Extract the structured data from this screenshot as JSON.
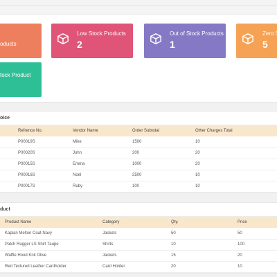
{
  "colors": {
    "orange": "#ee7f5e",
    "pink": "#e05477",
    "purple": "#8579c6",
    "amber": "#f5a254",
    "teal": "#2fbf96",
    "table_header": "#f9e7cc"
  },
  "cards": [
    {
      "label": "oducts",
      "value": "",
      "icon": "box-icon"
    },
    {
      "label": "Low Stock Products",
      "value": "2",
      "icon": "box-icon"
    },
    {
      "label": "Out of Stock Products",
      "value": "1",
      "icon": "box-icon"
    },
    {
      "label": "Zero S",
      "value": "5",
      "icon": "box-icon"
    },
    {
      "label": "tock Product",
      "value": "",
      "icon": ""
    }
  ],
  "invoice": {
    "title": "oice",
    "headers": [
      "Refrence No.",
      "Vendor Name",
      "Order Subtotal",
      "Other Charges Total"
    ],
    "rows": [
      [
        "P00019S",
        "Mike",
        "1500",
        "10"
      ],
      [
        "P00020S",
        "John",
        "200",
        "20"
      ],
      [
        "P00015S",
        "Emma",
        "1000",
        "20"
      ],
      [
        "P00016S",
        "Noel",
        "2500",
        "10"
      ],
      [
        "P00017S",
        "Ruby",
        "100",
        "10"
      ]
    ]
  },
  "product": {
    "title": "duct",
    "headers": [
      "Product Name",
      "Category",
      "Qty.",
      "Price"
    ],
    "rows": [
      [
        "Kaplan Melton Coat Navy",
        "Jackets",
        "50",
        "50"
      ],
      [
        "Patch Rugger LS Shirt Taupe",
        "Shirts",
        "10",
        "100"
      ],
      [
        "Waffle Hood Knit Olive",
        "Jackets",
        "15",
        "20"
      ],
      [
        "Red Textured Leather Cardholder",
        "Card Holder",
        "20",
        "10"
      ]
    ]
  }
}
